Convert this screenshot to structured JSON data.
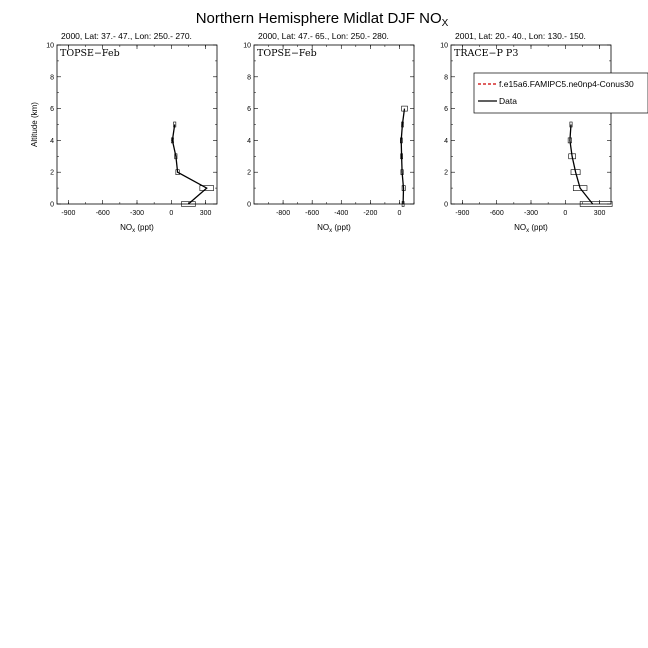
{
  "figure": {
    "title_main": "Northern Hemisphere Midlat DJF NO",
    "title_sub": "X"
  },
  "legend": {
    "model_label": "f.e15a6.FAMIPC5.ne0np4-Conus30",
    "model_color": "#cc0000",
    "data_label": "Data",
    "data_color": "#000000"
  },
  "chart_data": [
    {
      "type": "line",
      "title": "2000, Lat: 37.- 47., Lon: 250.- 270.",
      "corner_label": "TOPSE−Feb",
      "xlabel_main": "NO",
      "xlabel_sub": "x",
      "xlabel_unit": " (ppt)",
      "ylabel": "Altitude (km)",
      "xlim": [
        -1000,
        400
      ],
      "ylim": [
        0,
        10
      ],
      "xticks": [
        -900,
        -600,
        -300,
        0,
        300
      ],
      "yticks": [
        0,
        2,
        4,
        6,
        8,
        10
      ],
      "series": [
        {
          "altitude": [
            0,
            1,
            2,
            3,
            4,
            5
          ],
          "mean": [
            150,
            310,
            55,
            40,
            10,
            30
          ],
          "low": [
            90,
            250,
            40,
            30,
            0,
            20
          ],
          "high": [
            210,
            370,
            70,
            50,
            20,
            40
          ]
        }
      ]
    },
    {
      "type": "line",
      "title": "2000, Lat: 47.- 65., Lon: 250.- 280.",
      "corner_label": "TOPSE−Feb",
      "xlabel_main": "NO",
      "xlabel_sub": "x",
      "xlabel_unit": " (ppt)",
      "ylabel": "",
      "xlim": [
        -1000,
        100
      ],
      "ylim": [
        0,
        10
      ],
      "xticks": [
        -800,
        -600,
        -400,
        -200,
        0
      ],
      "yticks": [
        0,
        2,
        4,
        6,
        8,
        10
      ],
      "series": [
        {
          "altitude": [
            0,
            1,
            2,
            3,
            4,
            5,
            6
          ],
          "mean": [
            25,
            28,
            18,
            15,
            12,
            20,
            35
          ],
          "low": [
            18,
            18,
            10,
            8,
            6,
            14,
            15
          ],
          "high": [
            32,
            40,
            26,
            22,
            18,
            26,
            55
          ]
        }
      ]
    },
    {
      "type": "line",
      "title": "2001, Lat: 20.- 40., Lon: 130.- 150.",
      "corner_label": "TRACE−P P3",
      "xlabel_main": "NO",
      "xlabel_sub": "x",
      "xlabel_unit": " (ppt)",
      "ylabel": "",
      "xlim": [
        -1000,
        400
      ],
      "ylim": [
        0,
        10
      ],
      "xticks": [
        -900,
        -600,
        -300,
        0,
        300
      ],
      "yticks": [
        0,
        2,
        4,
        6,
        8,
        10
      ],
      "series": [
        {
          "altitude": [
            0,
            1,
            2,
            3,
            4,
            5
          ],
          "mean": [
            240,
            130,
            90,
            60,
            40,
            50
          ],
          "low": [
            130,
            70,
            50,
            30,
            25,
            40
          ],
          "high": [
            410,
            190,
            130,
            90,
            55,
            60
          ]
        }
      ]
    }
  ]
}
